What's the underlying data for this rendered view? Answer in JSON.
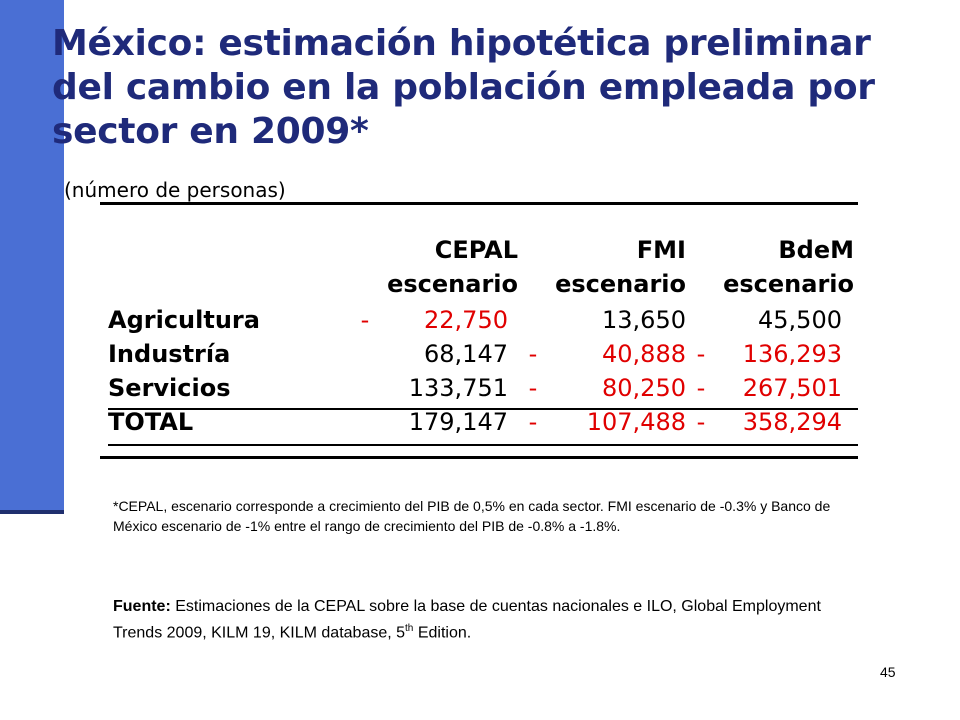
{
  "slide": {
    "title": "México: estimación hipotética preliminar del cambio en la población empleada por sector en 2009*",
    "subtitle": "(número de personas)",
    "page_number": "45"
  },
  "table": {
    "headers": [
      {
        "line1": "CEPAL",
        "line2": "escenario"
      },
      {
        "line1": "FMI",
        "line2": "escenario"
      },
      {
        "line1": "BdeM",
        "line2": "escenario"
      }
    ],
    "rows": [
      {
        "label": "Agricultura",
        "values": [
          {
            "sign": "-",
            "value": "22,750",
            "color": "red"
          },
          {
            "sign": "",
            "value": "13,650",
            "color": "black"
          },
          {
            "sign": "",
            "value": "45,500",
            "color": "black"
          }
        ]
      },
      {
        "label": "Industría",
        "values": [
          {
            "sign": "",
            "value": "68,147",
            "color": "black"
          },
          {
            "sign": "-",
            "value": "40,888",
            "color": "red"
          },
          {
            "sign": "-",
            "value": "136,293",
            "color": "red"
          }
        ]
      },
      {
        "label": "Servicios",
        "values": [
          {
            "sign": "",
            "value": "133,751",
            "color": "black"
          },
          {
            "sign": "-",
            "value": "80,250",
            "color": "red"
          },
          {
            "sign": "-",
            "value": "267,501",
            "color": "red"
          }
        ]
      },
      {
        "label": "TOTAL",
        "values": [
          {
            "sign": "",
            "value": "179,147",
            "color": "black"
          },
          {
            "sign": "-",
            "value": "107,488",
            "color": "red"
          },
          {
            "sign": "-",
            "value": "358,294",
            "color": "red"
          }
        ]
      }
    ]
  },
  "footnote": "*CEPAL, escenario corresponde a crecimiento del PIB de 0,5% en cada sector. FMI escenario de -0.3% y Banco de México escenario de -1% entre el rango de crecimiento del PIB de -0.8% a -1.8%.",
  "source": {
    "label": "Fuente:",
    "text": "Estimaciones de la CEPAL sobre la base de cuentas nacionales e ILO, Global Employment Trends 2009, KILM 19, KILM database, 5",
    "sup": "th",
    "tail": " Edition."
  },
  "colors": {
    "title": "#1f2a7a",
    "accent_bar": "#4a6fd4",
    "negative": "#e00000"
  }
}
